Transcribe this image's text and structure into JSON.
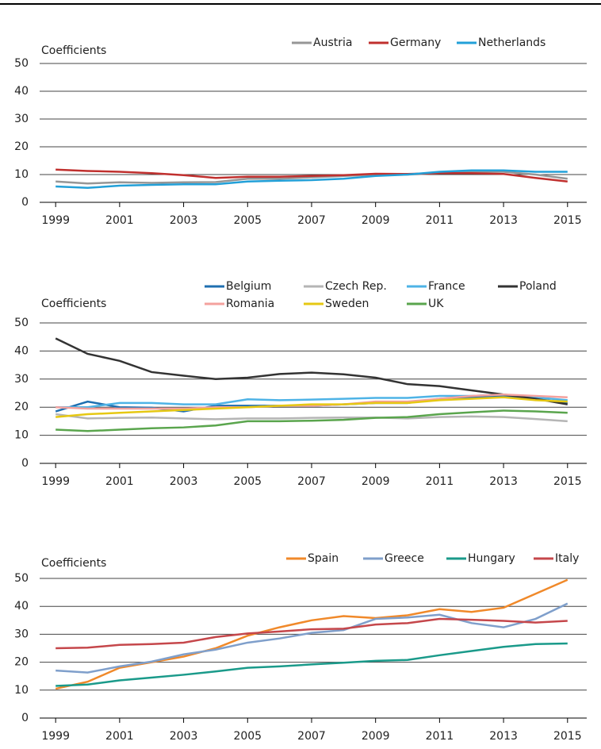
{
  "chart_data": [
    {
      "type": "line",
      "y_axis_label": "Coefficients",
      "x": [
        1999,
        2000,
        2001,
        2002,
        2003,
        2004,
        2005,
        2006,
        2007,
        2008,
        2009,
        2010,
        2011,
        2012,
        2013,
        2014,
        2015
      ],
      "xlim": [
        1998.5,
        2015.6
      ],
      "xticks": [
        1999,
        2001,
        2003,
        2005,
        2007,
        2009,
        2011,
        2013,
        2015
      ],
      "ylim": [
        0,
        50
      ],
      "yticks": [
        0,
        10,
        20,
        30,
        40,
        50
      ],
      "grid": true,
      "series": [
        {
          "name": "Austria",
          "color": "#969696",
          "values": [
            7.5,
            6.8,
            7.2,
            7,
            7.2,
            7.3,
            8.5,
            8.5,
            9,
            9.5,
            10,
            10,
            10.5,
            11,
            11,
            10,
            8.5
          ]
        },
        {
          "name": "Germany",
          "color": "#c0302e",
          "values": [
            11.8,
            11.3,
            11,
            10.5,
            9.8,
            8.8,
            9.2,
            9.2,
            9.5,
            9.8,
            10.3,
            10.2,
            10.5,
            10.5,
            10.2,
            8.8,
            7.5
          ]
        },
        {
          "name": "Netherlands",
          "color": "#22a0d8",
          "values": [
            5.7,
            5.2,
            6,
            6.3,
            6.5,
            6.5,
            7.5,
            7.8,
            8,
            8.5,
            9.5,
            10,
            11,
            11.5,
            11.5,
            11,
            11
          ]
        }
      ]
    },
    {
      "type": "line",
      "y_axis_label": "Coefficients",
      "x": [
        1999,
        2000,
        2001,
        2002,
        2003,
        2004,
        2005,
        2006,
        2007,
        2008,
        2009,
        2010,
        2011,
        2012,
        2013,
        2014,
        2015
      ],
      "xlim": [
        1998.5,
        2015.6
      ],
      "xticks": [
        1999,
        2001,
        2003,
        2005,
        2007,
        2009,
        2011,
        2013,
        2015
      ],
      "ylim": [
        0,
        50
      ],
      "yticks": [
        0,
        10,
        20,
        30,
        40,
        50
      ],
      "grid": true,
      "series": [
        {
          "name": "Belgium",
          "color": "#1f6fb0",
          "values": [
            18.5,
            22,
            20,
            19.8,
            18.5,
            20.5,
            20.5,
            20.5,
            20.5,
            21,
            21.5,
            21.5,
            23,
            23.5,
            24,
            23,
            21.5
          ]
        },
        {
          "name": "Czech Rep.",
          "color": "#b5b5b5",
          "values": [
            17.5,
            16,
            16.2,
            16.3,
            16,
            15.7,
            16,
            16,
            16.2,
            16.3,
            16.3,
            16,
            16.5,
            16.7,
            16.5,
            15.8,
            15
          ]
        },
        {
          "name": "France",
          "color": "#4eb3e6",
          "values": [
            20,
            20,
            21.5,
            21.5,
            21,
            21,
            22.8,
            22.5,
            22.7,
            23,
            23.3,
            23.3,
            24,
            24,
            24.5,
            23.5,
            22.5
          ]
        },
        {
          "name": "Poland",
          "color": "#333333",
          "values": [
            44.5,
            39,
            36.5,
            32.5,
            31.2,
            30,
            30.5,
            31.8,
            32.3,
            31.7,
            30.5,
            28.2,
            27.5,
            26,
            24.5,
            23,
            21
          ]
        },
        {
          "name": "Romania",
          "color": "#f4a19d",
          "values": [
            20,
            19.5,
            19.5,
            19.5,
            19.5,
            20,
            20,
            20.5,
            20.5,
            21,
            22,
            22,
            23,
            24,
            24.5,
            24,
            23.5
          ]
        },
        {
          "name": "Sweden",
          "color": "#e6c813",
          "values": [
            16.5,
            17.5,
            18,
            18.5,
            19,
            19.5,
            20,
            20.5,
            21,
            21,
            21.5,
            21.5,
            22.5,
            23,
            23.5,
            22.5,
            22
          ]
        },
        {
          "name": "UK",
          "color": "#5aa54d",
          "values": [
            12,
            11.5,
            12,
            12.5,
            12.8,
            13.5,
            15,
            15,
            15.2,
            15.5,
            16.2,
            16.5,
            17.5,
            18.2,
            18.8,
            18.5,
            18
          ]
        }
      ]
    },
    {
      "type": "line",
      "y_axis_label": "Coefficients",
      "x": [
        1999,
        2000,
        2001,
        2002,
        2003,
        2004,
        2005,
        2006,
        2007,
        2008,
        2009,
        2010,
        2011,
        2012,
        2013,
        2014,
        2015
      ],
      "xlim": [
        1998.5,
        2015.6
      ],
      "xticks": [
        1999,
        2001,
        2003,
        2005,
        2007,
        2009,
        2011,
        2013,
        2015
      ],
      "ylim": [
        0,
        50
      ],
      "yticks": [
        0,
        10,
        20,
        30,
        40,
        50
      ],
      "grid": true,
      "series": [
        {
          "name": "Spain",
          "color": "#f0892a",
          "values": [
            10.5,
            13,
            18,
            20,
            22,
            25,
            29.5,
            32.5,
            35,
            36.5,
            35.8,
            36.8,
            39,
            38,
            39.5,
            44.5,
            49.5
          ]
        },
        {
          "name": "Greece",
          "color": "#7f9fcb",
          "values": [
            17,
            16.3,
            18.5,
            20.2,
            22.8,
            24.5,
            27,
            28.5,
            30.5,
            31.5,
            35.5,
            36,
            37,
            34,
            32.5,
            35.5,
            41
          ]
        },
        {
          "name": "Hungary",
          "color": "#1a9a8a",
          "values": [
            11.5,
            12,
            13.5,
            14.5,
            15.5,
            16.7,
            18,
            18.5,
            19.2,
            19.8,
            20.5,
            20.8,
            22.5,
            24,
            25.5,
            26.5,
            26.7
          ]
        },
        {
          "name": "Italy",
          "color": "#c5474b",
          "values": [
            25,
            25.2,
            26.2,
            26.5,
            27,
            29,
            30.3,
            31,
            31.8,
            32,
            33.5,
            34,
            35.5,
            35.2,
            34.8,
            34.2,
            34.8
          ]
        }
      ]
    }
  ]
}
